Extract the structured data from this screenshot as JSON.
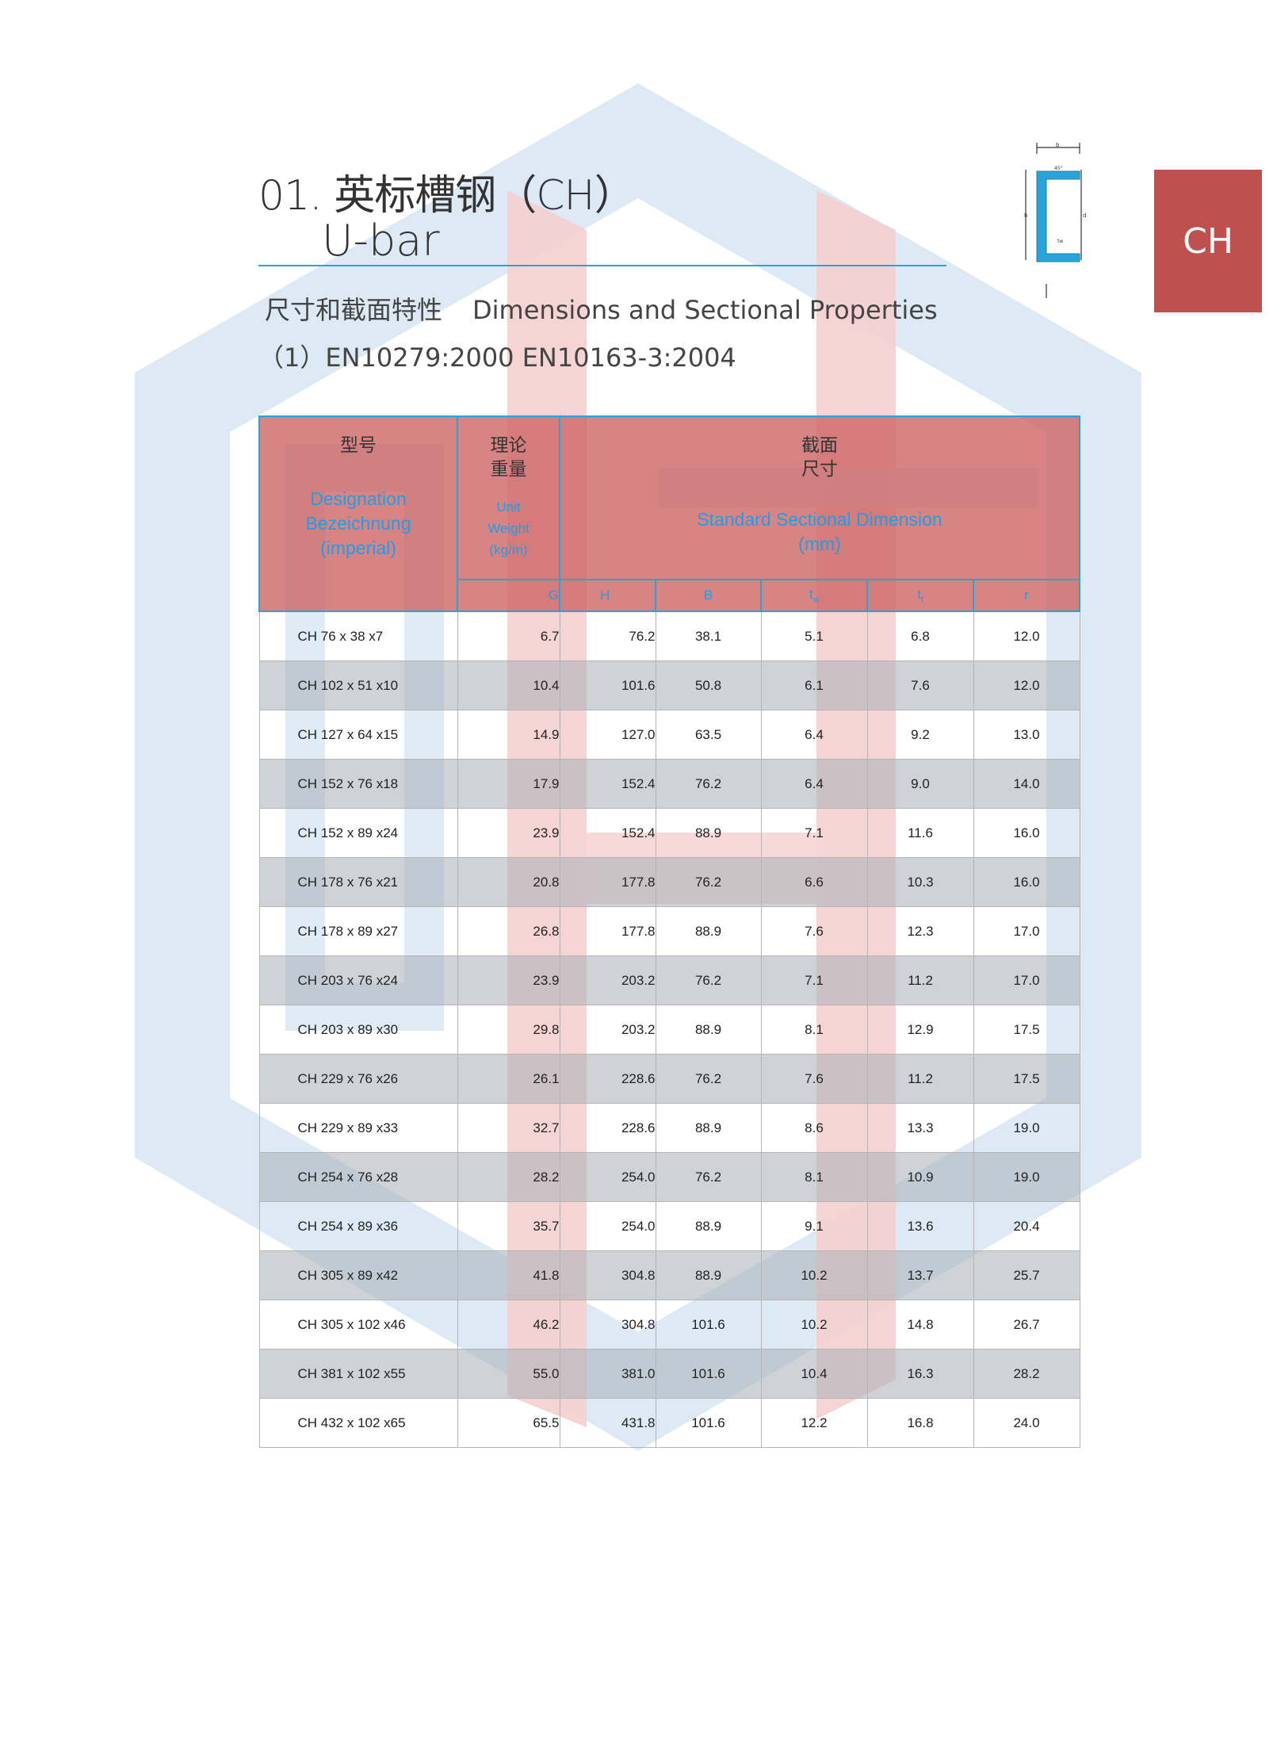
{
  "title": {
    "line1": "01. 英标槽钢（CH）",
    "line2": "U-bar"
  },
  "subtitle": {
    "cn": "尺寸和截面特性",
    "en": "Dimensions and Sectional Properties"
  },
  "standard": "（1）EN10279:2000  EN10163-3:2004",
  "tab_label": "CH",
  "colors": {
    "accent_blue": "#2aa3d8",
    "header_red": "#cd6262",
    "tab_red": "#c0504d"
  },
  "table": {
    "header": {
      "designation": {
        "cn": "型号",
        "en1": "Designation",
        "en2": "Bezeichnung",
        "en3": "(imperial)"
      },
      "weight": {
        "cn1": "理论",
        "cn2": "重量",
        "en1": "Unit",
        "en2": "Weight",
        "en3": "(kg/m)"
      },
      "dimension": {
        "cn1": "截面",
        "cn2": "尺寸",
        "en1": "Standard Sectional  Dimension",
        "en2": "(mm)"
      }
    },
    "subheaders": [
      "G",
      "H",
      "B",
      "tw",
      "tf",
      "r"
    ],
    "rows": [
      [
        "CH 76 x 38 x7",
        "6.7",
        "76.2",
        "38.1",
        "5.1",
        "6.8",
        "12.0"
      ],
      [
        "CH 102 x 51 x10",
        "10.4",
        "101.6",
        "50.8",
        "6.1",
        "7.6",
        "12.0"
      ],
      [
        "CH 127 x 64 x15",
        "14.9",
        "127.0",
        "63.5",
        "6.4",
        "9.2",
        "13.0"
      ],
      [
        "CH 152 x 76 x18",
        "17.9",
        "152.4",
        "76.2",
        "6.4",
        "9.0",
        "14.0"
      ],
      [
        "CH 152 x 89 x24",
        "23.9",
        "152.4",
        "88.9",
        "7.1",
        "11.6",
        "16.0"
      ],
      [
        "CH 178 x 76 x21",
        "20.8",
        "177.8",
        "76.2",
        "6.6",
        "10.3",
        "16.0"
      ],
      [
        "CH 178 x 89 x27",
        "26.8",
        "177.8",
        "88.9",
        "7.6",
        "12.3",
        "17.0"
      ],
      [
        "CH 203 x 76 x24",
        "23.9",
        "203.2",
        "76.2",
        "7.1",
        "11.2",
        "17.0"
      ],
      [
        "CH 203 x 89 x30",
        "29.8",
        "203.2",
        "88.9",
        "8.1",
        "12.9",
        "17.5"
      ],
      [
        "CH 229 x 76 x26",
        "26.1",
        "228.6",
        "76.2",
        "7.6",
        "11.2",
        "17.5"
      ],
      [
        "CH 229 x 89 x33",
        "32.7",
        "228.6",
        "88.9",
        "8.6",
        "13.3",
        "19.0"
      ],
      [
        "CH 254 x 76 x28",
        "28.2",
        "254.0",
        "76.2",
        "8.1",
        "10.9",
        "19.0"
      ],
      [
        "CH 254 x 89 x36",
        "35.7",
        "254.0",
        "88.9",
        "9.1",
        "13.6",
        "20.4"
      ],
      [
        "CH 305 x 89 x42",
        "41.8",
        "304.8",
        "88.9",
        "10.2",
        "13.7",
        "25.7"
      ],
      [
        "CH 305 x 102 x46",
        "46.2",
        "304.8",
        "101.6",
        "10.2",
        "14.8",
        "26.7"
      ],
      [
        "CH 381 x 102 x55",
        "55.0",
        "381.0",
        "101.6",
        "10.4",
        "16.3",
        "28.2"
      ],
      [
        "CH 432 x 102 x65",
        "65.5",
        "431.8",
        "101.6",
        "12.2",
        "16.8",
        "24.0"
      ]
    ]
  }
}
